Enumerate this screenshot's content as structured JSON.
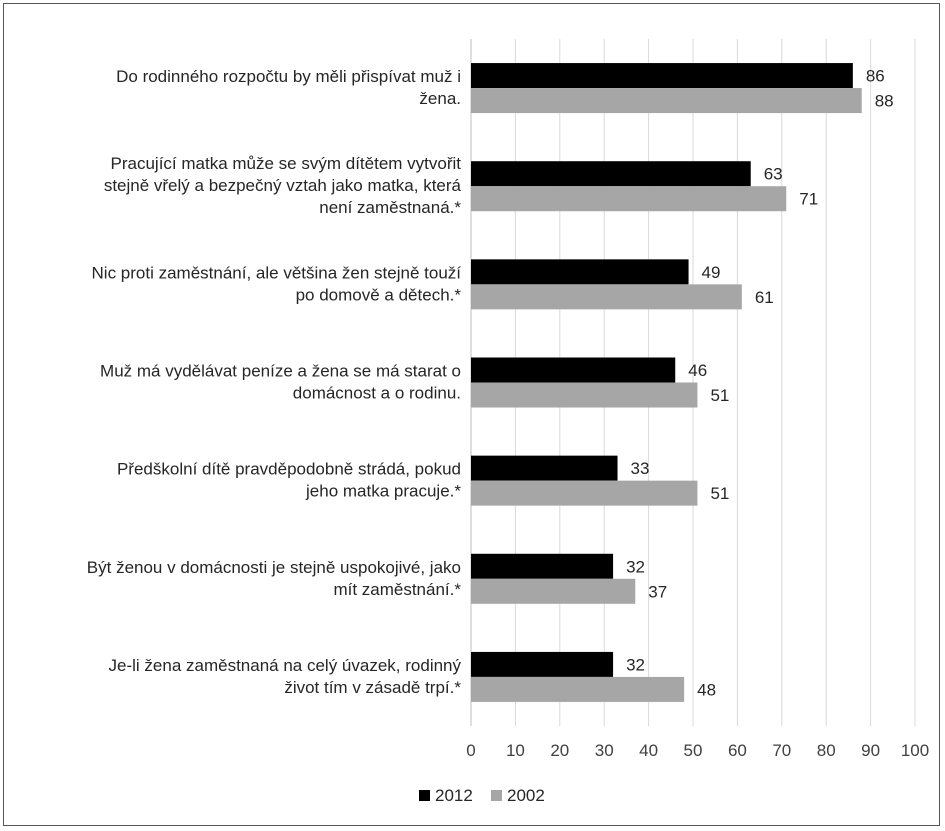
{
  "chart_data": {
    "type": "bar",
    "orientation": "horizontal",
    "categories": [
      [
        "Do rodinného rozpočtu by měli přispívat muž i",
        "žena."
      ],
      [
        "Pracující matka může se svým dítětem vytvořit",
        "stejně vřelý a bezpečný vztah jako matka, která",
        "není zaměstnaná.*"
      ],
      [
        "Nic proti zaměstnání, ale většina žen stejně touží",
        "po domově a dětech.*"
      ],
      [
        "Muž má vydělávat peníze a žena se má starat o",
        "domácnost a o rodinu."
      ],
      [
        "Předškolní dítě pravděpodobně strádá, pokud",
        "jeho matka pracuje.*"
      ],
      [
        "Být ženou v domácnosti je stejně uspokojivé, jako",
        "mít zaměstnání.*"
      ],
      [
        "Je-li žena zaměstnaná na celý úvazek, rodinný",
        "život tím v zásadě trpí.*"
      ]
    ],
    "series": [
      {
        "name": "2012",
        "color": "#000000",
        "values": [
          86,
          63,
          49,
          46,
          33,
          32,
          32
        ]
      },
      {
        "name": "2002",
        "color": "#a6a6a6",
        "values": [
          88,
          71,
          61,
          51,
          51,
          37,
          48
        ]
      }
    ],
    "xlim": [
      0,
      100
    ],
    "xticks": [
      "0",
      "10",
      "20",
      "30",
      "40",
      "50",
      "60",
      "70",
      "80",
      "90",
      "100"
    ],
    "grid": true,
    "legend_position": "bottom-center",
    "data_labels": true
  }
}
